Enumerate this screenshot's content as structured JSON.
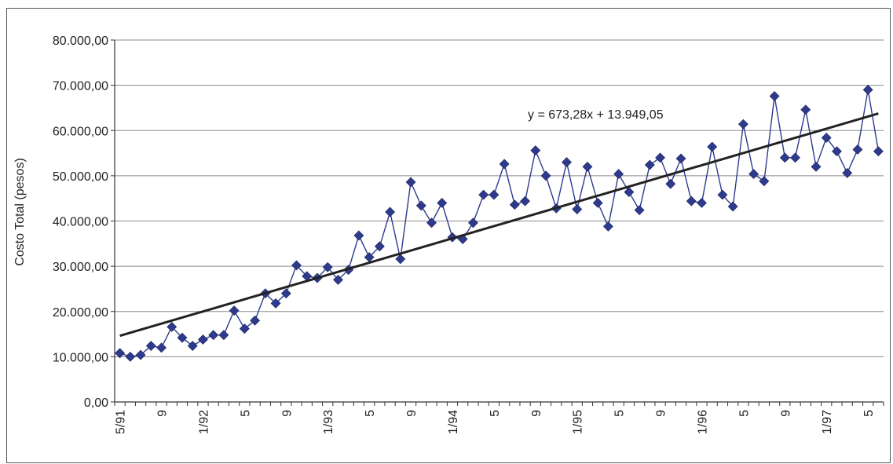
{
  "chart_data": {
    "type": "line",
    "title": "",
    "xlabel": "",
    "ylabel": "Costo Total (pesos)",
    "ylim": [
      0,
      80000
    ],
    "y_ticks": [
      "0,00",
      "10.000,00",
      "20.000,00",
      "30.000,00",
      "40.000,00",
      "50.000,00",
      "60.000,00",
      "70.000,00",
      "80.000,00"
    ],
    "x_tick_labels": [
      "5/91",
      "9",
      "1/92",
      "5",
      "9",
      "1/93",
      "5",
      "9",
      "1/94",
      "5",
      "9",
      "1/95",
      "5",
      "9",
      "1/96",
      "5",
      "9",
      "1/97",
      "5"
    ],
    "x_tick_index": [
      0,
      4,
      8,
      12,
      16,
      20,
      24,
      28,
      32,
      36,
      40,
      44,
      48,
      52,
      56,
      60,
      64,
      68,
      72
    ],
    "grid": true,
    "legend": "none",
    "colors": {
      "series": "#2e3a8c",
      "marker": "#2e3a8c",
      "trend": "#222222",
      "grid": "#8a8a8a"
    },
    "series": [
      {
        "values": [
          10800,
          10000,
          10400,
          12400,
          12000,
          16600,
          14200,
          12400,
          13800,
          14800,
          14800,
          20200,
          16200,
          18000,
          24000,
          21800,
          24000,
          30200,
          27800,
          27400,
          29800,
          27000,
          29200,
          36800,
          32000,
          34400,
          42000,
          31600,
          48600,
          43400,
          39600,
          44000,
          36400,
          36000,
          39600,
          45800,
          45800,
          52600,
          43600,
          44400,
          55600,
          50000,
          42800,
          53000,
          42600,
          52000,
          44000,
          38800,
          50400,
          46400,
          42400,
          52400,
          54000,
          48200,
          53800,
          44400,
          44000,
          56400,
          45800,
          43200,
          61400,
          50400,
          48800,
          67600,
          54000,
          54000,
          64600,
          52000,
          58400,
          55400,
          50600,
          55800,
          69000,
          55400
        ]
      }
    ],
    "trendline": {
      "slope": 673.28,
      "intercept": 13949.05,
      "equation": "y = 673,28x + 13.949,05"
    }
  }
}
